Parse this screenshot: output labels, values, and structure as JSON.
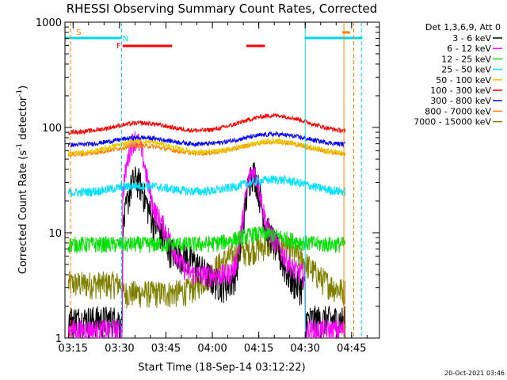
{
  "chart_data": {
    "type": "line",
    "title": "RHESSI Observing Summary Count Rates, Corrected",
    "xlabel": "Start Time (18-Sep-14 03:12:22)",
    "ylabel_main": "Corrected Count Rate (s",
    "ylabel_sup1": "-1",
    "ylabel_mid": " detector",
    "ylabel_sup2": "-1",
    "ylabel_end": ")",
    "yscale": "log",
    "ylim": [
      1,
      1000
    ],
    "xlim": [
      "03:12:22",
      "04:54:00"
    ],
    "x_ticks": [
      "03:15",
      "03:30",
      "03:45",
      "04:00",
      "04:15",
      "04:30",
      "04:45"
    ],
    "y_ticks": [
      "1",
      "10",
      "100",
      "1000"
    ],
    "legend_header": "Det 1,3,6,9, Att 0",
    "legend_position": "right",
    "footer": "20-Oct-2021 03:46",
    "flags": [
      {
        "label": "S",
        "color": "#ff7f00"
      },
      {
        "label": "N",
        "color": "#00d7e8"
      },
      {
        "label": "F",
        "color": "#ff0000"
      }
    ],
    "series": [
      {
        "name": "3 - 6 keV",
        "color": "#000000"
      },
      {
        "name": "6 - 12 keV",
        "color": "#ff00ff"
      },
      {
        "name": "12 - 25 keV",
        "color": "#00e000"
      },
      {
        "name": "25 - 50 keV",
        "color": "#00e0ff"
      },
      {
        "name": "50 - 100 keV",
        "color": "#e8c800"
      },
      {
        "name": "100 - 300 keV",
        "color": "#ff0000"
      },
      {
        "name": "300 - 800 keV",
        "color": "#0000ff"
      },
      {
        "name": "800 - 7000 keV",
        "color": "#ff8000"
      },
      {
        "name": "7000 - 15000 keV",
        "color": "#808000"
      }
    ]
  }
}
